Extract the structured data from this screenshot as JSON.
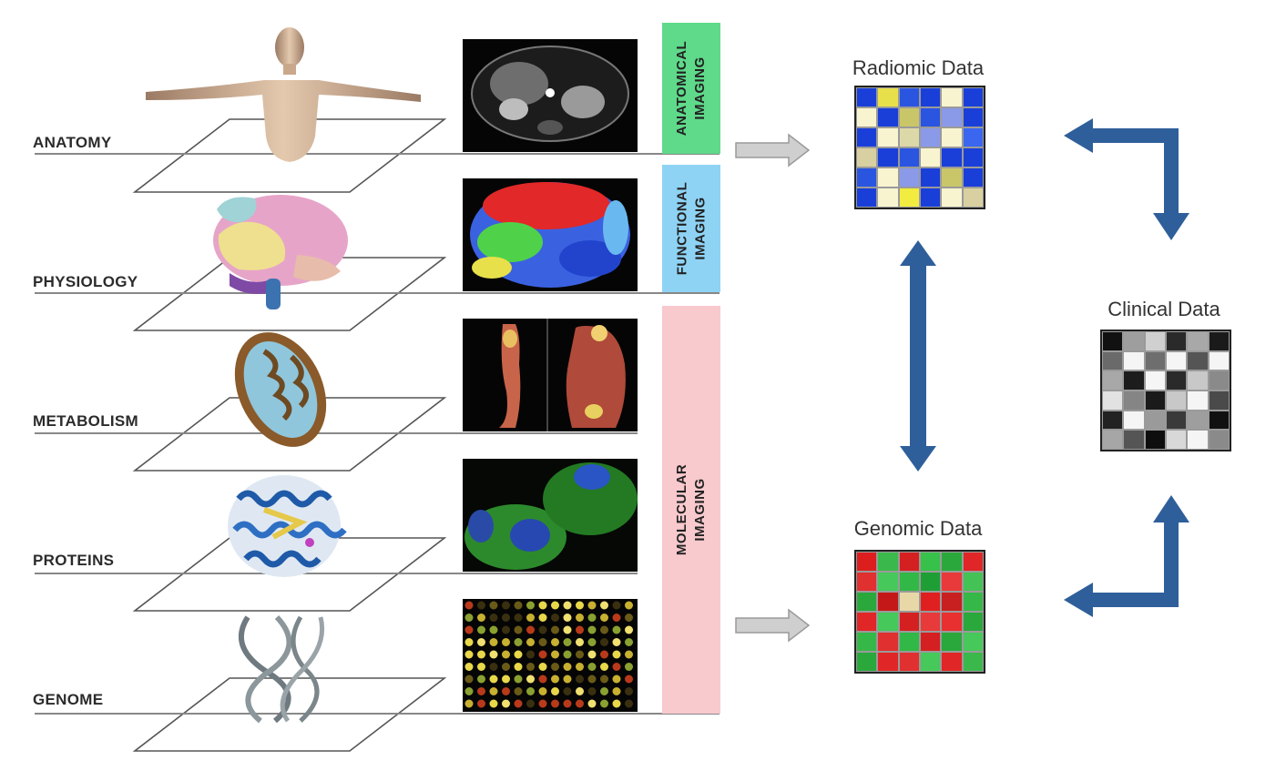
{
  "levels": [
    {
      "label": "ANATOMY",
      "illustration": "human-body-icon",
      "image": "ct-scan-image"
    },
    {
      "label": "PHYSIOLOGY",
      "illustration": "brain-icon",
      "image": "functional-brain-map-image"
    },
    {
      "label": "METABOLISM",
      "illustration": "mitochondrion-icon",
      "image": "pet-scan-image"
    },
    {
      "label": "PROTEINS",
      "illustration": "protein-structure-icon",
      "image": "fluorescent-cells-image"
    },
    {
      "label": "GENOME",
      "illustration": "dna-helix-icon",
      "image": "microarray-image"
    }
  ],
  "imaging_labels": {
    "anatomical": "ANATOMICAL\nIMAGING",
    "functional": "FUNCTIONAL\nIMAGING",
    "molecular": "MOLECULAR\nIMAGING"
  },
  "imaging_colors": {
    "anatomical": "#5fd98a",
    "functional": "#8fd3f4",
    "molecular": "#f8c9cd"
  },
  "data_panels": {
    "radiomic": {
      "title": "Radiomic Data",
      "rows": 6,
      "cols": 6,
      "cells": [
        "#1a3fd8",
        "#e8e04a",
        "#2a55e0",
        "#1a3fd8",
        "#f8f4d0",
        "#1a3fd8",
        "#f8f4d0",
        "#1a3fd8",
        "#c9c66a",
        "#2a55e0",
        "#8a9ae8",
        "#1a3fd8",
        "#1a3fd8",
        "#f8f4d0",
        "#ddd8a8",
        "#8a9ae8",
        "#f8f4d0",
        "#3a66f0",
        "#d8d0a0",
        "#1a3fd8",
        "#2a55e0",
        "#f8f4d0",
        "#1a3fd8",
        "#1a3fd8",
        "#2a55e0",
        "#f8f4d0",
        "#8a9ae8",
        "#1a3fd8",
        "#c9c66a",
        "#1a3fd8",
        "#1a3fd8",
        "#f8f4d0",
        "#f2ec40",
        "#1a3fd8",
        "#f8f4d0",
        "#d8d0a0"
      ]
    },
    "genomic": {
      "title": "Genomic Data",
      "rows": 6,
      "cols": 6,
      "cells": [
        "#dd1e1e",
        "#3bb84b",
        "#d42020",
        "#37c04a",
        "#2aa83c",
        "#e02626",
        "#e03030",
        "#46c85a",
        "#32b846",
        "#1f9e36",
        "#e83a3a",
        "#45c255",
        "#2aa83c",
        "#c41818",
        "#e8d8a8",
        "#e02020",
        "#c82020",
        "#36b848",
        "#e02626",
        "#46c85a",
        "#d42020",
        "#e83a3a",
        "#e83030",
        "#2aa83c",
        "#36b848",
        "#e03030",
        "#32b846",
        "#d42020",
        "#2aa83c",
        "#46c85a",
        "#2aa83c",
        "#e02626",
        "#e03030",
        "#46c85a",
        "#e02626",
        "#3bb84b"
      ]
    },
    "clinical": {
      "title": "Clinical Data",
      "rows": 6,
      "cols": 6,
      "cells": [
        "#111111",
        "#9e9e9e",
        "#d0d0d0",
        "#2a2a2a",
        "#a8a8a8",
        "#1a1a1a",
        "#6a6a6a",
        "#f5f5f5",
        "#6e6e6e",
        "#f5f5f5",
        "#555555",
        "#f5f5f5",
        "#a8a8a8",
        "#1c1c1c",
        "#f5f5f5",
        "#2a2a2a",
        "#c8c8c8",
        "#8a8a8a",
        "#e2e2e2",
        "#858585",
        "#1a1a1a",
        "#c8c8c8",
        "#f5f5f5",
        "#4a4a4a",
        "#222222",
        "#f5f5f5",
        "#9a9a9a",
        "#3a3a3a",
        "#9e9e9e",
        "#111111",
        "#a6a6a6",
        "#555555",
        "#0e0e0e",
        "#d8d8d8",
        "#f5f5f5",
        "#8a8a8a"
      ]
    }
  },
  "colors": {
    "arrow_blue": "#2f5f9a",
    "arrow_gray": "#c8c8c8",
    "plane_stroke": "#555555"
  }
}
